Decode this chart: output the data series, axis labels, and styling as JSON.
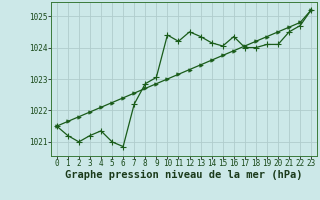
{
  "background_color": "#cce8e8",
  "grid_color": "#b0cccc",
  "line_color": "#1a5c1a",
  "x_values": [
    0,
    1,
    2,
    3,
    4,
    5,
    6,
    7,
    8,
    9,
    10,
    11,
    12,
    13,
    14,
    15,
    16,
    17,
    18,
    19,
    20,
    21,
    22,
    23
  ],
  "y_main": [
    1021.5,
    1021.2,
    1021.0,
    1021.2,
    1021.35,
    1021.0,
    1020.85,
    1022.2,
    1022.85,
    1023.05,
    1024.4,
    1024.2,
    1024.5,
    1024.35,
    1024.15,
    1024.05,
    1024.35,
    1024.0,
    1024.0,
    1024.1,
    1024.1,
    1024.5,
    1024.7,
    1025.2
  ],
  "y_trend": [
    1021.5,
    1021.65,
    1021.8,
    1021.95,
    1022.1,
    1022.25,
    1022.4,
    1022.55,
    1022.7,
    1022.85,
    1023.0,
    1023.15,
    1023.3,
    1023.45,
    1023.6,
    1023.75,
    1023.9,
    1024.05,
    1024.2,
    1024.35,
    1024.5,
    1024.65,
    1024.8,
    1025.2
  ],
  "ylim": [
    1020.55,
    1025.45
  ],
  "yticks": [
    1021,
    1022,
    1023,
    1024,
    1025
  ],
  "xticks": [
    0,
    1,
    2,
    3,
    4,
    5,
    6,
    7,
    8,
    9,
    10,
    11,
    12,
    13,
    14,
    15,
    16,
    17,
    18,
    19,
    20,
    21,
    22,
    23
  ],
  "xlabel": "Graphe pression niveau de la mer (hPa)",
  "tick_fontsize": 5.5,
  "xlabel_fontsize": 7.5,
  "marker_size": 2.5
}
